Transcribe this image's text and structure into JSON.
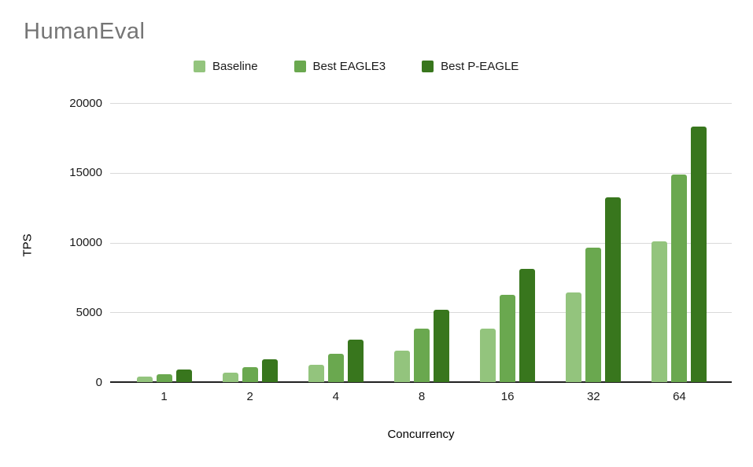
{
  "chart_data": {
    "type": "bar",
    "title": "HumanEval",
    "xlabel": "Concurrency",
    "ylabel": "TPS",
    "ylim": [
      0,
      20000
    ],
    "yticks": [
      0,
      5000,
      10000,
      15000,
      20000
    ],
    "grid": true,
    "legend_position": "top",
    "categories": [
      "1",
      "2",
      "4",
      "8",
      "16",
      "32",
      "64"
    ],
    "series": [
      {
        "name": "Baseline",
        "color": "#93c47d",
        "values": [
          420,
          680,
          1250,
          2250,
          3850,
          6450,
          10100
        ]
      },
      {
        "name": "Best EAGLE3",
        "color": "#6aa84f",
        "values": [
          550,
          1050,
          2050,
          3850,
          6250,
          9650,
          14900
        ]
      },
      {
        "name": "Best P-EAGLE",
        "color": "#38761d",
        "values": [
          900,
          1650,
          3050,
          5200,
          8100,
          13250,
          18300
        ]
      }
    ],
    "colors": {
      "title_text": "#757575",
      "tick_text": "#1a1a1a",
      "gridline": "#d9d9d9",
      "axis_line": "#212121"
    }
  }
}
